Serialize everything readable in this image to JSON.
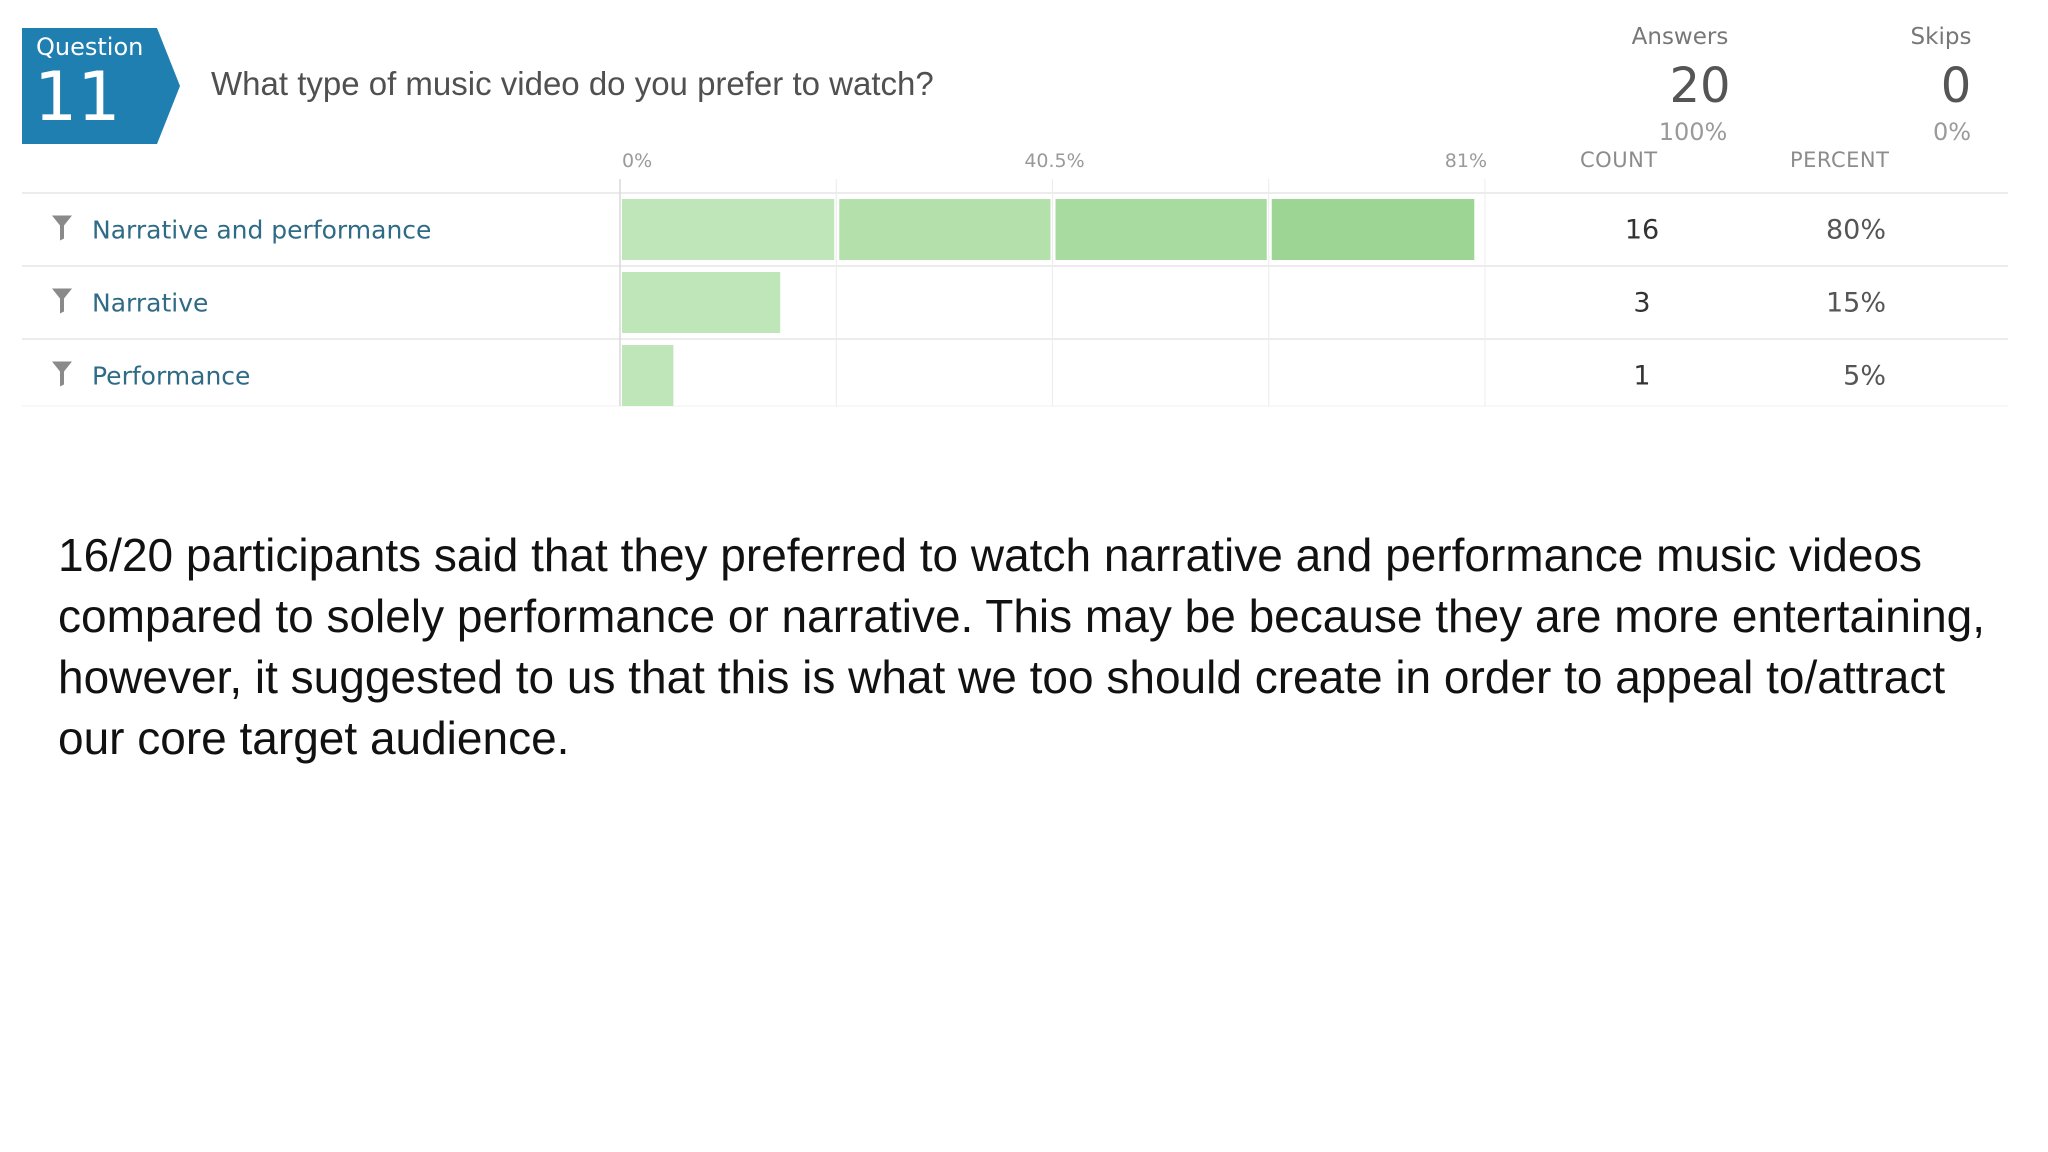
{
  "question": {
    "badge_label": "Question",
    "number": "11",
    "title": "What type of music video do you prefer to watch?",
    "badge_color": "#1f7fb0"
  },
  "answers": {
    "label": "Answers",
    "value": "20",
    "percent": "100%"
  },
  "skips": {
    "label": "Skips",
    "value": "0",
    "percent": "0%"
  },
  "columns": {
    "count": "COUNT",
    "percent": "PERCENT"
  },
  "filter_icon": "filter-icon",
  "chart_data": {
    "type": "bar",
    "orientation": "horizontal",
    "categories": [
      "Narrative and performance",
      "Narrative",
      "Performance"
    ],
    "values": [
      80,
      15,
      5
    ],
    "counts": [
      "16",
      "3",
      "1"
    ],
    "percents": [
      "80%",
      "15%",
      "5%"
    ],
    "x_ticks": [
      "0%",
      "40.5%",
      "81%"
    ],
    "xlim": [
      0,
      81
    ],
    "grid": true,
    "bar_color": "#a8dca0"
  },
  "caption": "16/20 participants said that they preferred to watch narrative and performance music videos compared to solely performance or narrative. This may be because they are more entertaining, however, it suggested to us that this is what we too should create in order to appeal to/attract our core target audience."
}
